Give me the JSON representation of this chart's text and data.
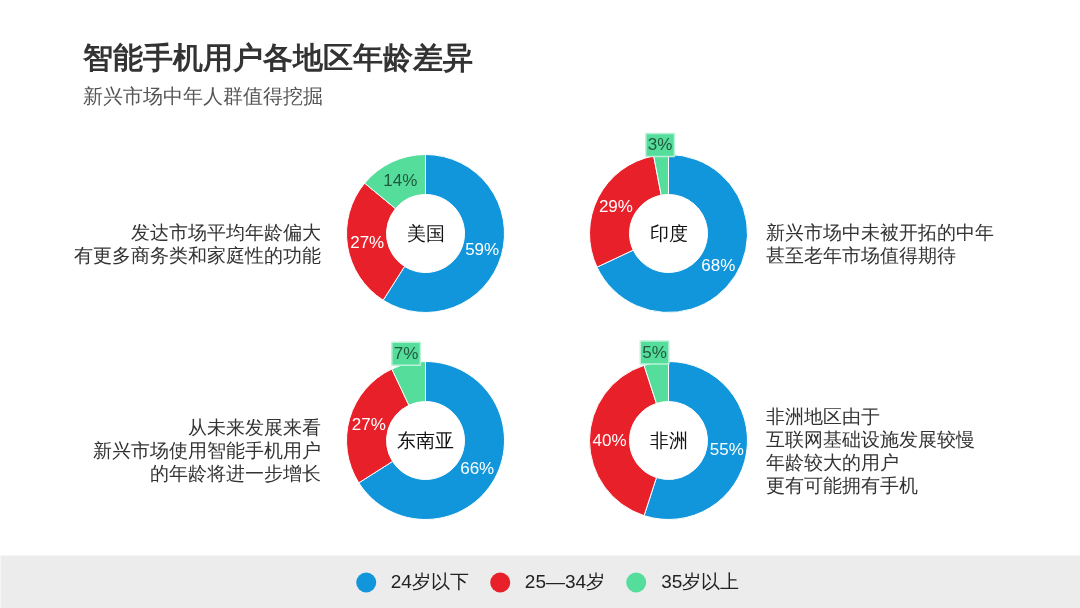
{
  "chart_data": [
    {
      "type": "other",
      "title": "智能手机用户各地区年龄差异",
      "subtitle": "新兴市场中年人群值得挖掘"
    },
    {
      "type": "donut",
      "title": "美国",
      "values": [
        59,
        27,
        14
      ],
      "colors": [
        "#1296db",
        "#e8202a",
        "#55dd9c"
      ],
      "value_labels": [
        "59%",
        "27%",
        "14%"
      ],
      "annotations": [
        "发达市场平均年龄偏大",
        "有更多商务类和家庭性的功能"
      ]
    },
    {
      "type": "donut",
      "title": "印度",
      "values": [
        68,
        29,
        3
      ],
      "colors": [
        "#1296db",
        "#e8202a",
        "#55dd9c"
      ],
      "value_labels": [
        "68%",
        "29%",
        "3%"
      ],
      "annotations": [
        "新兴市场中未被开拓的中年",
        "甚至老年市场值得期待"
      ]
    },
    {
      "type": "donut",
      "title": "东南亚",
      "values": [
        66,
        27,
        7
      ],
      "colors": [
        "#1296db",
        "#e8202a",
        "#55dd9c"
      ],
      "value_labels": [
        "66%",
        "27%",
        "7%"
      ],
      "annotations": [
        "从未来发展来看",
        "新兴市场使用智能手机用户",
        "的年龄将进一步增长"
      ]
    },
    {
      "type": "donut",
      "title": "非洲",
      "categories": [
        "24岁以下",
        "25—34岁",
        "35岁以上"
      ],
      "values": [
        55,
        40,
        5
      ],
      "colors": [
        "#1296db",
        "#e8202a",
        "#55dd9c"
      ],
      "value_labels": [
        "55%",
        "40%",
        "5%"
      ],
      "annotations": [
        "非洲地区由于",
        "互联网基础设施发展较慢",
        "年龄较大的用户",
        "更有可能拥有手机"
      ],
      "legend": "bottom"
    }
  ]
}
